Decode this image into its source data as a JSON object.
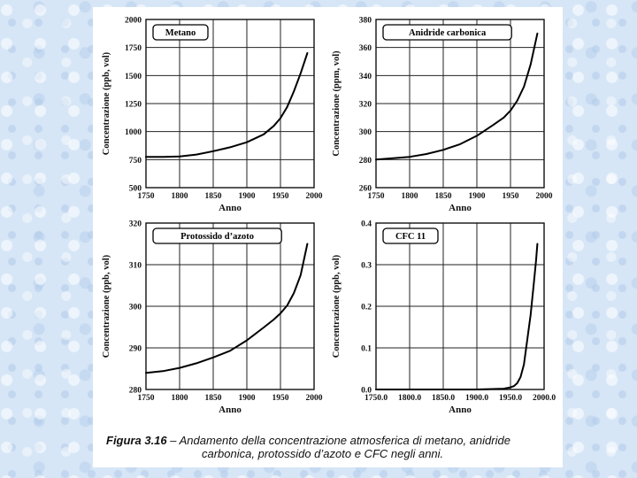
{
  "figure": {
    "caption_label": "Figura 3.16",
    "caption_sep": " – ",
    "caption_line1": "Andamento della concentrazione atmosferica di metano, anidride",
    "caption_line2": "carbonica, protossido d’azoto e CFC negli anni."
  },
  "chart_data": [
    {
      "type": "line",
      "title": "Metano",
      "xlabel": "Anno",
      "ylabel": "Concentrazione (ppb, vol)",
      "xlim": [
        1750,
        2000
      ],
      "ylim": [
        500,
        2000
      ],
      "x_ticks": [
        1750,
        1800,
        1850,
        1900,
        1950,
        2000
      ],
      "y_ticks": [
        500,
        750,
        1000,
        1250,
        1500,
        1750,
        2000
      ],
      "grid": true,
      "series": [
        {
          "x": [
            1750,
            1775,
            1800,
            1825,
            1850,
            1875,
            1900,
            1925,
            1940,
            1950,
            1960,
            1970,
            1980,
            1990
          ],
          "y": [
            775,
            775,
            778,
            795,
            825,
            860,
            905,
            975,
            1050,
            1120,
            1220,
            1360,
            1520,
            1700
          ]
        }
      ]
    },
    {
      "type": "line",
      "title": "Anidride carbonica",
      "xlabel": "Anno",
      "ylabel": "Concentrazione (ppm, vol)",
      "xlim": [
        1750,
        2000
      ],
      "ylim": [
        260,
        380
      ],
      "x_ticks": [
        1750,
        1800,
        1850,
        1900,
        1950,
        2000
      ],
      "y_ticks": [
        260,
        280,
        300,
        320,
        340,
        360,
        380
      ],
      "grid": true,
      "series": [
        {
          "x": [
            1750,
            1775,
            1800,
            1825,
            1850,
            1875,
            1900,
            1925,
            1940,
            1950,
            1960,
            1970,
            1980,
            1990
          ],
          "y": [
            280,
            281,
            282,
            284,
            287,
            291,
            297,
            305,
            310,
            315,
            322,
            332,
            348,
            370
          ]
        }
      ]
    },
    {
      "type": "line",
      "title": "Protossido d’azoto",
      "xlabel": "Anno",
      "ylabel": "Concentrazione (ppb, vol)",
      "xlim": [
        1750,
        2000
      ],
      "ylim": [
        280,
        320
      ],
      "x_ticks": [
        1750,
        1800,
        1850,
        1900,
        1950,
        2000
      ],
      "y_ticks": [
        280,
        290,
        300,
        310,
        320
      ],
      "grid": true,
      "series": [
        {
          "x": [
            1750,
            1775,
            1800,
            1825,
            1850,
            1875,
            1900,
            1925,
            1940,
            1950,
            1960,
            1970,
            1980,
            1990
          ],
          "y": [
            284,
            284.4,
            285.2,
            286.3,
            287.7,
            289.3,
            291.8,
            294.9,
            296.8,
            298.3,
            300.2,
            303.2,
            307.5,
            315
          ]
        }
      ]
    },
    {
      "type": "line",
      "title": "CFC 11",
      "xlabel": "Anno",
      "ylabel": "Concentrazione (ppb, vol)",
      "xlim": [
        1750,
        2000
      ],
      "ylim": [
        0.0,
        0.4
      ],
      "x_ticks": [
        1750,
        1800,
        1850,
        1900,
        1950,
        2000
      ],
      "y_ticks": [
        0.0,
        0.1,
        0.2,
        0.3,
        0.4
      ],
      "tick_decimals": 1,
      "grid": true,
      "series": [
        {
          "x": [
            1750,
            1900,
            1940,
            1950,
            1955,
            1960,
            1965,
            1970,
            1975,
            1980,
            1985,
            1988,
            1990
          ],
          "y": [
            0,
            0,
            0.002,
            0.005,
            0.008,
            0.015,
            0.03,
            0.06,
            0.12,
            0.18,
            0.26,
            0.31,
            0.35
          ]
        }
      ]
    }
  ]
}
